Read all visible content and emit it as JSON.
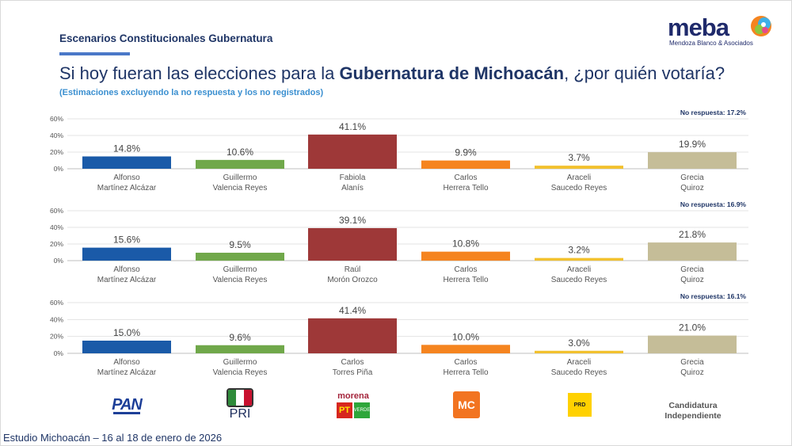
{
  "header": {
    "section_title": "Escenarios Constitucionales Gubernatura",
    "question_pre": "Si hoy fueran las elecciones para la ",
    "question_bold": "Gubernatura de Michoacán",
    "question_post": ", ¿por quién votaría?",
    "subtitle": "(Estimaciones excluyendo la no respuesta y los no registrados)"
  },
  "logo": {
    "word": "meba",
    "subtitle": "Mendoza Blanco & Asociados"
  },
  "footer": "Estudio Michoacán – 16 al 18 de enero de 2026",
  "parties": {
    "pan": "PAN",
    "pri": "PRI",
    "morena": "morena",
    "pt": "PT",
    "verde": "VERDE",
    "mc": "MC",
    "prd": "PRD",
    "independiente": "Candidatura Independiente"
  },
  "colors": [
    "#1a5aa8",
    "#70a84a",
    "#9e3838",
    "#f5841f",
    "#f2c12e",
    "#c5bd98"
  ],
  "chart_data": [
    {
      "type": "bar",
      "no_response": "No respuesta: 17.2%",
      "ylim": [
        0,
        60
      ],
      "yticks": [
        "0%",
        "20%",
        "40%",
        "60%"
      ],
      "grid": true,
      "categories": [
        [
          "Alfonso",
          "Martínez Alcázar"
        ],
        [
          "Guillermo",
          "Valencia Reyes"
        ],
        [
          "Fabiola",
          "Alanís"
        ],
        [
          "Carlos",
          "Herrera Tello"
        ],
        [
          "Araceli",
          "Saucedo Reyes"
        ],
        [
          "Grecia",
          "Quiroz"
        ]
      ],
      "values": [
        14.8,
        10.6,
        41.1,
        9.9,
        3.7,
        19.9
      ],
      "labels": [
        "14.8%",
        "10.6%",
        "41.1%",
        "9.9%",
        "3.7%",
        "19.9%"
      ]
    },
    {
      "type": "bar",
      "no_response": "No respuesta: 16.9%",
      "ylim": [
        0,
        60
      ],
      "yticks": [
        "0%",
        "20%",
        "40%",
        "60%"
      ],
      "grid": true,
      "categories": [
        [
          "Alfonso",
          "Martínez Alcázar"
        ],
        [
          "Guillermo",
          "Valencia Reyes"
        ],
        [
          "Raúl",
          "Morón Orozco"
        ],
        [
          "Carlos",
          "Herrera Tello"
        ],
        [
          "Araceli",
          "Saucedo Reyes"
        ],
        [
          "Grecia",
          "Quiroz"
        ]
      ],
      "values": [
        15.6,
        9.5,
        39.1,
        10.8,
        3.2,
        21.8
      ],
      "labels": [
        "15.6%",
        "9.5%",
        "39.1%",
        "10.8%",
        "3.2%",
        "21.8%"
      ]
    },
    {
      "type": "bar",
      "no_response": "No respuesta: 16.1%",
      "ylim": [
        0,
        60
      ],
      "yticks": [
        "0%",
        "20%",
        "40%",
        "60%"
      ],
      "grid": true,
      "categories": [
        [
          "Alfonso",
          "Martínez Alcázar"
        ],
        [
          "Guillermo",
          "Valencia Reyes"
        ],
        [
          "Carlos",
          "Torres Piña"
        ],
        [
          "Carlos",
          "Herrera Tello"
        ],
        [
          "Araceli",
          "Saucedo Reyes"
        ],
        [
          "Grecia",
          "Quiroz"
        ]
      ],
      "values": [
        15.0,
        9.6,
        41.4,
        10.0,
        3.0,
        21.0
      ],
      "labels": [
        "15.0%",
        "9.6%",
        "41.4%",
        "10.0%",
        "3.0%",
        "21.0%"
      ]
    }
  ]
}
